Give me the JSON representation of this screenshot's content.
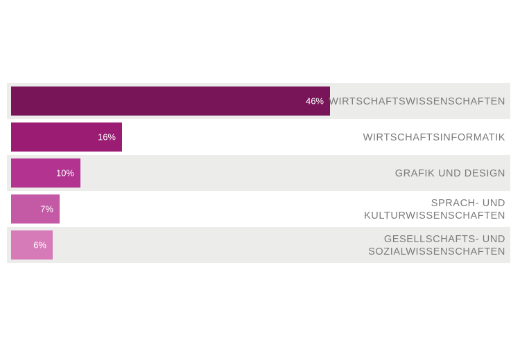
{
  "chart_data": {
    "type": "bar",
    "orientation": "horizontal",
    "categories": [
      [
        "WIRTSCHAFTSWISSENSCHAFTEN"
      ],
      [
        "WIRTSCHAFTSINFORMATIK"
      ],
      [
        "GRAFIK UND DESIGN"
      ],
      [
        "SPRACH- UND",
        "KULTURWISSENSCHAFTEN"
      ],
      [
        "GESELLSCHAFTS- UND",
        "SOZIALWISSENSCHAFTEN"
      ]
    ],
    "values": [
      46,
      16,
      10,
      7,
      6
    ],
    "value_labels": [
      "46%",
      "16%",
      "10%",
      "7%",
      "6%"
    ],
    "bar_colors": [
      "#781458",
      "#9a1d73",
      "#b23490",
      "#c45aa6",
      "#d67ab8"
    ],
    "stripe_color": "#ececea",
    "label_color": "#7a7a7a",
    "xlim": [
      0,
      100
    ],
    "legend": "none",
    "grid": false
  }
}
